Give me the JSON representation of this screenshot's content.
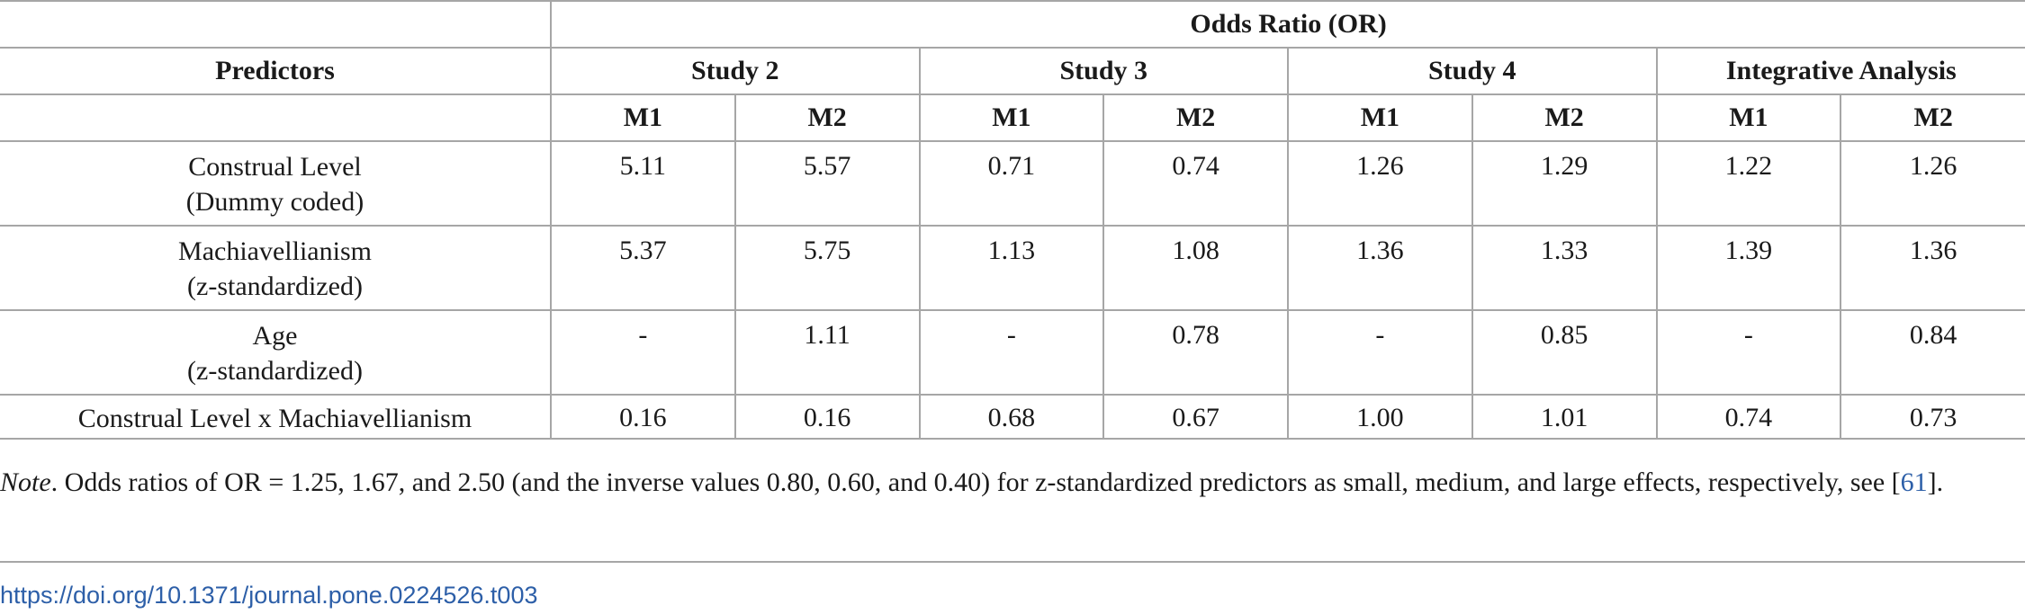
{
  "table": {
    "header_or": "Odds Ratio (OR)",
    "header_predictors": "Predictors",
    "studies": [
      "Study 2",
      "Study 3",
      "Study 4",
      "Integrative Analysis"
    ],
    "models": [
      "M1",
      "M2",
      "M1",
      "M2",
      "M1",
      "M2",
      "M1",
      "M2"
    ],
    "rows": [
      {
        "predictor_line1": "Construal Level",
        "predictor_line2": "(Dummy coded)",
        "values": [
          "5.11",
          "5.57",
          "0.71",
          "0.74",
          "1.26",
          "1.29",
          "1.22",
          "1.26"
        ]
      },
      {
        "predictor_line1": "Machiavellianism",
        "predictor_line2": "(z-standardized)",
        "values": [
          "5.37",
          "5.75",
          "1.13",
          "1.08",
          "1.36",
          "1.33",
          "1.39",
          "1.36"
        ]
      },
      {
        "predictor_line1": "Age",
        "predictor_line2": "(z-standardized)",
        "values": [
          "-",
          "1.11",
          "-",
          "0.78",
          "-",
          "0.85",
          "-",
          "0.84"
        ]
      },
      {
        "predictor_line1": "Construal Level x Machiavellianism",
        "predictor_line2": "",
        "values": [
          "0.16",
          "0.16",
          "0.68",
          "0.67",
          "1.00",
          "1.01",
          "0.74",
          "0.73"
        ]
      }
    ]
  },
  "note": {
    "lead": "Note",
    "text": ". Odds ratios of OR = 1.25, 1.67, and 2.50 (and the inverse values 0.80, 0.60, and 0.40) for z-standardized predictors as small, medium, and large effects, respectively, see [",
    "ref": "61",
    "tail": "]."
  },
  "doi": "https://doi.org/10.1371/journal.pone.0224526.t003"
}
